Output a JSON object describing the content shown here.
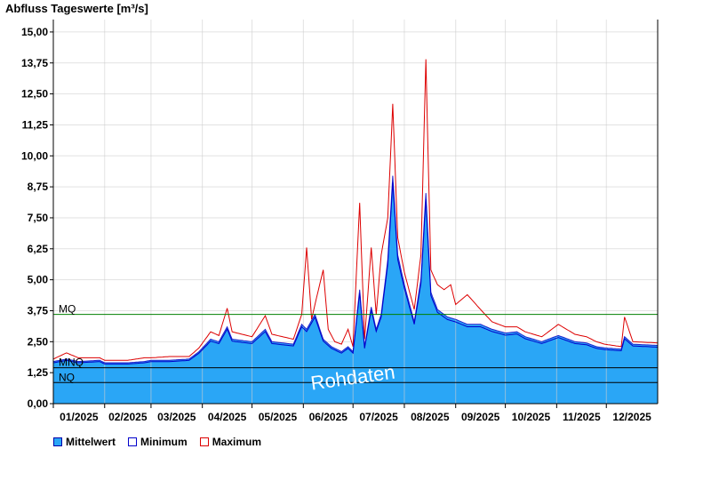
{
  "chart_data": {
    "type": "area",
    "title": "Abfluss Tageswerte [m³/s]",
    "watermark": "Rohdaten",
    "ylim": [
      0,
      15.5
    ],
    "yticks": [
      "0,00",
      "1,25",
      "2,50",
      "3,75",
      "5,00",
      "6,25",
      "7,50",
      "8,75",
      "10,00",
      "11,25",
      "12,50",
      "13,75",
      "15,00"
    ],
    "ytick_values": [
      0,
      1.25,
      2.5,
      3.75,
      5,
      6.25,
      7.5,
      8.75,
      10,
      11.25,
      12.5,
      13.75,
      15
    ],
    "xlim": [
      0,
      365
    ],
    "months": [
      "01/2025",
      "02/2025",
      "03/2025",
      "04/2025",
      "05/2025",
      "06/2025",
      "07/2025",
      "08/2025",
      "09/2025",
      "10/2025",
      "11/2025",
      "12/2025"
    ],
    "month_starts": [
      0,
      31,
      59,
      90,
      120,
      151,
      181,
      212,
      243,
      273,
      304,
      334
    ],
    "grid": true,
    "reference_lines": [
      {
        "label": "MQ",
        "value": 3.6,
        "color": "#008000"
      },
      {
        "label": "MNQ",
        "value": 1.45,
        "color": "#000000"
      },
      {
        "label": "NQ",
        "value": 0.85,
        "color": "#000000"
      }
    ],
    "colors": {
      "mean_fill": "#2aa6f6",
      "minimum": "#0000cc",
      "maximum": "#dd0000"
    },
    "series": [
      {
        "name": "Mittelwert",
        "key": "mean"
      },
      {
        "name": "Minimum",
        "key": "min"
      },
      {
        "name": "Maximum",
        "key": "max"
      }
    ],
    "mean_keypoints": [
      [
        0,
        1.7
      ],
      [
        8,
        1.8
      ],
      [
        15,
        1.7
      ],
      [
        28,
        1.75
      ],
      [
        31,
        1.65
      ],
      [
        45,
        1.65
      ],
      [
        55,
        1.7
      ],
      [
        59,
        1.75
      ],
      [
        70,
        1.75
      ],
      [
        82,
        1.8
      ],
      [
        88,
        2.1
      ],
      [
        95,
        2.6
      ],
      [
        100,
        2.5
      ],
      [
        105,
        3.1
      ],
      [
        108,
        2.6
      ],
      [
        120,
        2.5
      ],
      [
        128,
        3.0
      ],
      [
        132,
        2.5
      ],
      [
        145,
        2.4
      ],
      [
        150,
        3.2
      ],
      [
        153,
        3.0
      ],
      [
        158,
        3.6
      ],
      [
        163,
        2.6
      ],
      [
        168,
        2.3
      ],
      [
        174,
        2.1
      ],
      [
        178,
        2.3
      ],
      [
        181,
        2.1
      ],
      [
        185,
        4.6
      ],
      [
        188,
        2.3
      ],
      [
        192,
        3.9
      ],
      [
        195,
        3.0
      ],
      [
        198,
        3.6
      ],
      [
        202,
        5.8
      ],
      [
        205,
        9.2
      ],
      [
        208,
        6.0
      ],
      [
        212,
        4.8
      ],
      [
        218,
        3.3
      ],
      [
        222,
        5.0
      ],
      [
        225,
        8.5
      ],
      [
        228,
        4.5
      ],
      [
        232,
        3.8
      ],
      [
        238,
        3.5
      ],
      [
        243,
        3.4
      ],
      [
        250,
        3.2
      ],
      [
        258,
        3.2
      ],
      [
        265,
        3.0
      ],
      [
        273,
        2.85
      ],
      [
        280,
        2.9
      ],
      [
        285,
        2.7
      ],
      [
        295,
        2.5
      ],
      [
        305,
        2.75
      ],
      [
        315,
        2.5
      ],
      [
        322,
        2.45
      ],
      [
        328,
        2.3
      ],
      [
        333,
        2.25
      ],
      [
        343,
        2.2
      ],
      [
        345,
        2.7
      ],
      [
        350,
        2.4
      ],
      [
        365,
        2.35
      ]
    ],
    "max_keypoints": [
      [
        0,
        1.8
      ],
      [
        8,
        2.05
      ],
      [
        15,
        1.85
      ],
      [
        28,
        1.85
      ],
      [
        31,
        1.75
      ],
      [
        45,
        1.75
      ],
      [
        55,
        1.85
      ],
      [
        59,
        1.85
      ],
      [
        70,
        1.9
      ],
      [
        82,
        1.9
      ],
      [
        88,
        2.25
      ],
      [
        95,
        2.9
      ],
      [
        100,
        2.75
      ],
      [
        105,
        3.85
      ],
      [
        108,
        2.9
      ],
      [
        120,
        2.7
      ],
      [
        128,
        3.55
      ],
      [
        132,
        2.8
      ],
      [
        145,
        2.6
      ],
      [
        150,
        3.6
      ],
      [
        153,
        6.3
      ],
      [
        156,
        3.4
      ],
      [
        158,
        4.0
      ],
      [
        163,
        5.4
      ],
      [
        166,
        3.0
      ],
      [
        170,
        2.5
      ],
      [
        174,
        2.4
      ],
      [
        178,
        3.0
      ],
      [
        181,
        2.3
      ],
      [
        185,
        8.1
      ],
      [
        188,
        2.6
      ],
      [
        192,
        6.3
      ],
      [
        195,
        3.6
      ],
      [
        198,
        6.0
      ],
      [
        202,
        7.5
      ],
      [
        205,
        12.1
      ],
      [
        208,
        6.7
      ],
      [
        212,
        5.3
      ],
      [
        218,
        3.8
      ],
      [
        222,
        6.0
      ],
      [
        225,
        13.9
      ],
      [
        228,
        5.4
      ],
      [
        232,
        4.8
      ],
      [
        236,
        4.6
      ],
      [
        240,
        4.8
      ],
      [
        243,
        4.0
      ],
      [
        250,
        4.4
      ],
      [
        258,
        3.8
      ],
      [
        265,
        3.3
      ],
      [
        273,
        3.1
      ],
      [
        280,
        3.1
      ],
      [
        285,
        2.9
      ],
      [
        295,
        2.7
      ],
      [
        305,
        3.2
      ],
      [
        315,
        2.8
      ],
      [
        322,
        2.7
      ],
      [
        328,
        2.5
      ],
      [
        333,
        2.4
      ],
      [
        343,
        2.3
      ],
      [
        345,
        3.5
      ],
      [
        350,
        2.5
      ],
      [
        365,
        2.45
      ]
    ]
  },
  "legend": {
    "mean_label": "Mittelwert",
    "min_label": "Minimum",
    "max_label": "Maximum"
  }
}
